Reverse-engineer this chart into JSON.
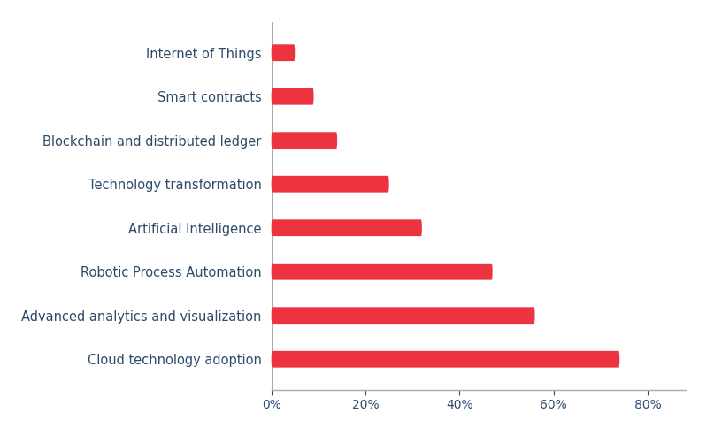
{
  "categories": [
    "Cloud technology adoption",
    "Advanced analytics and visualization",
    "Robotic Process Automation",
    "Artificial Intelligence",
    "Technology transformation",
    "Blockchain and distributed ledger",
    "Smart contracts",
    "Internet of Things"
  ],
  "values": [
    74,
    56,
    47,
    32,
    25,
    14,
    9,
    5
  ],
  "bar_color": "#EE3340",
  "label_color": "#2E4A6B",
  "axis_color": "#aaaaaa",
  "background_color": "#ffffff",
  "bar_height": 0.38,
  "xlim": [
    0,
    88
  ],
  "xticks": [
    0,
    20,
    40,
    60,
    80
  ],
  "xtick_labels": [
    "0%",
    "20%",
    "40%",
    "60%",
    "80%"
  ],
  "label_fontsize": 10.5,
  "tick_fontsize": 10
}
